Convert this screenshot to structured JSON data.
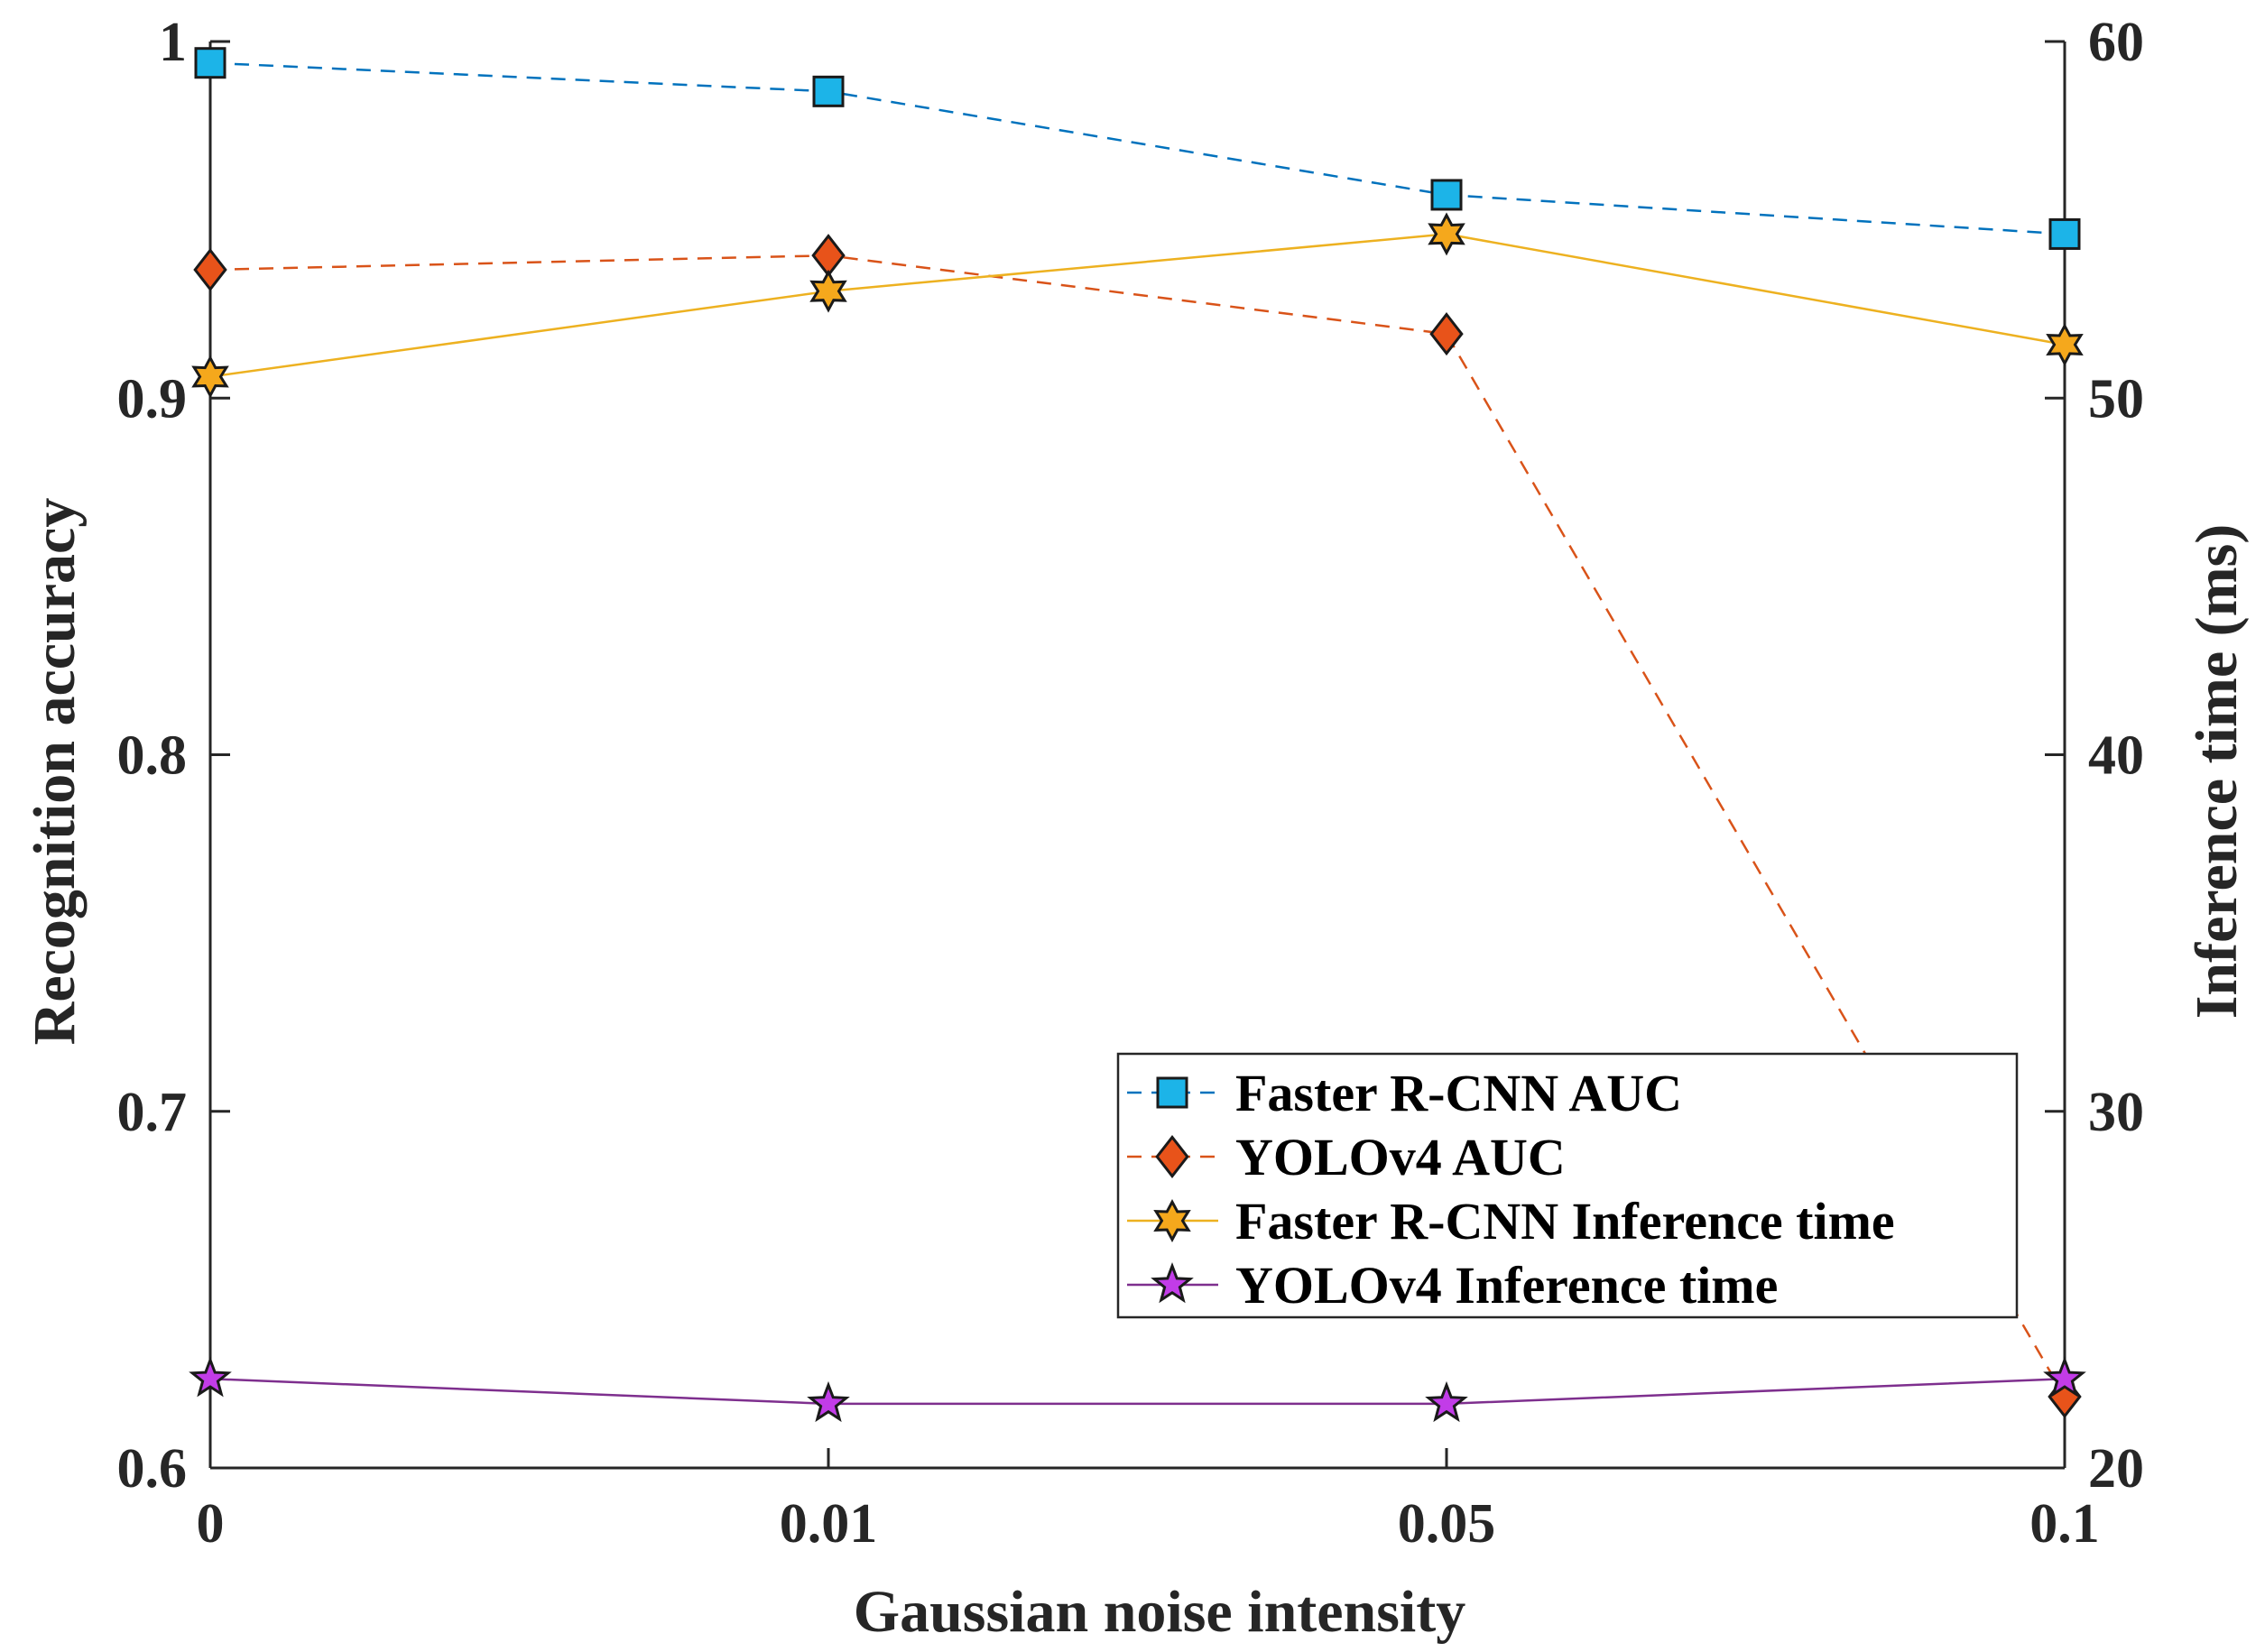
{
  "chart_data": {
    "type": "line",
    "categories": [
      "0",
      "0.01",
      "0.05",
      "0.1"
    ],
    "xlabel": "Gaussian noise intensity",
    "ylabel_left": "Recognition accuracy",
    "ylabel_right": "Inference time (ms)",
    "ylim_left": [
      0.6,
      1.0
    ],
    "ylim_right": [
      20,
      60
    ],
    "yticks_left": [
      "0.6",
      "0.7",
      "0.8",
      "0.9",
      "1"
    ],
    "yticks_right": [
      "20",
      "30",
      "40",
      "50",
      "60"
    ],
    "grid": false,
    "legend_position": "bottom-right",
    "series": [
      {
        "name": "Faster R-CNN AUC",
        "axis": "left",
        "values": [
          0.994,
          0.986,
          0.957,
          0.946
        ],
        "color": "#0072BD",
        "marker_fill": "#1CB4E8",
        "marker": "square",
        "line_style": "dashed"
      },
      {
        "name": "YOLOv4 AUC",
        "axis": "left",
        "values": [
          0.936,
          0.94,
          0.918,
          0.62
        ],
        "color": "#D95319",
        "marker_fill": "#E8531A",
        "marker": "diamond",
        "line_style": "dashed"
      },
      {
        "name": "Faster R-CNN Inference time",
        "axis": "right",
        "values": [
          50.6,
          53.0,
          54.6,
          51.5
        ],
        "color": "#EDB120",
        "marker_fill": "#F5A81C",
        "marker": "hexagram",
        "line_style": "solid"
      },
      {
        "name": "YOLOv4 Inference time",
        "axis": "right",
        "values": [
          22.5,
          21.8,
          21.8,
          22.5
        ],
        "color": "#7E2F8E",
        "marker_fill": "#C23CE8",
        "marker": "pentagram",
        "line_style": "solid"
      }
    ]
  }
}
